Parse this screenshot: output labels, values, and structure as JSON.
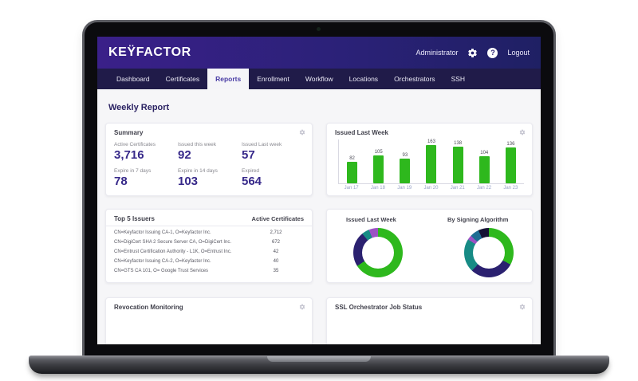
{
  "window": {
    "header": {
      "logo": "KEŸFACTOR",
      "user": "Administrator",
      "help_label": "?",
      "logout": "Logout"
    },
    "nav": {
      "items": [
        "Dashboard",
        "Certificates",
        "Reports",
        "Enrollment",
        "Workflow",
        "Locations",
        "Orchestrators",
        "SSH"
      ],
      "active": "Reports"
    },
    "page_title": "Weekly Report"
  },
  "summary": {
    "title": "Summary",
    "metrics": [
      {
        "label": "Active Certificates",
        "value": "3,716"
      },
      {
        "label": "Issued this week",
        "value": "92"
      },
      {
        "label": "Issued Last week",
        "value": "57"
      },
      {
        "label": "Expire in 7 days",
        "value": "78"
      },
      {
        "label": "Expire in 14 days",
        "value": "103"
      },
      {
        "label": "Expired",
        "value": "564"
      }
    ]
  },
  "issuers": {
    "title": "Top 5 Issuers",
    "value_header": "Active Certificates",
    "rows": [
      {
        "name": "CN=Keyfactor Issuing CA-1, O=Keyfactor Inc.",
        "value": "2,712"
      },
      {
        "name": "CN=DigiCert SHA 2 Secure Server CA, O=DigiCert Inc.",
        "value": "672"
      },
      {
        "name": "CN=Entrust Certification Authority - L1K, O=Entrust Inc.",
        "value": "42"
      },
      {
        "name": "CN=Keyfactor Issuing CA-2, O=Keyfactor Inc.",
        "value": "40"
      },
      {
        "name": "CN=GTS CA 101, O= Google Trust Services",
        "value": "35"
      }
    ]
  },
  "bottom_cards": {
    "left_title": "Revocation Monitoring",
    "right_title": "SSL Orchestrator Job Status"
  },
  "chart_data": [
    {
      "type": "bar",
      "title": "Issued Last Week",
      "categories": [
        "Jan 17",
        "Jan 18",
        "Jan 19",
        "Jan 20",
        "Jan 21",
        "Jan 22",
        "Jan 23"
      ],
      "values": [
        82,
        105,
        93,
        163,
        138,
        104,
        136
      ],
      "ylim": [
        0,
        163
      ],
      "bar_color": "#2eb81d",
      "grid": false,
      "legend": "none"
    },
    {
      "type": "pie",
      "donut": true,
      "title": "Issued Last Week",
      "segments": [
        {
          "percent": 66,
          "color": "#2eb81d"
        },
        {
          "percent": 23,
          "color": "#2b2170"
        },
        {
          "percent": 5,
          "color": "#178b85"
        },
        {
          "percent": 6,
          "color": "#9c52c4"
        }
      ]
    },
    {
      "type": "pie",
      "donut": true,
      "title": "By Signing Algorithm",
      "segments": [
        {
          "percent": 33,
          "color": "#2eb81d"
        },
        {
          "percent": 29,
          "color": "#2b2170"
        },
        {
          "percent": 22,
          "color": "#178b85"
        },
        {
          "percent": 3,
          "color": "#9c52c4"
        },
        {
          "percent": 6,
          "color": "#1f6d93"
        },
        {
          "percent": 7,
          "color": "#161335"
        }
      ]
    }
  ],
  "colors": {
    "header_gradient_start": "#3a2089",
    "header_gradient_end": "#1f2064",
    "nav_background": "#201b49",
    "accent_green": "#2eb81d",
    "accent_indigo": "#2b2170",
    "accent_teal": "#178b85",
    "accent_purple": "#9c52c4",
    "metric_value": "#37298a",
    "page_background": "#f6f6f8"
  }
}
